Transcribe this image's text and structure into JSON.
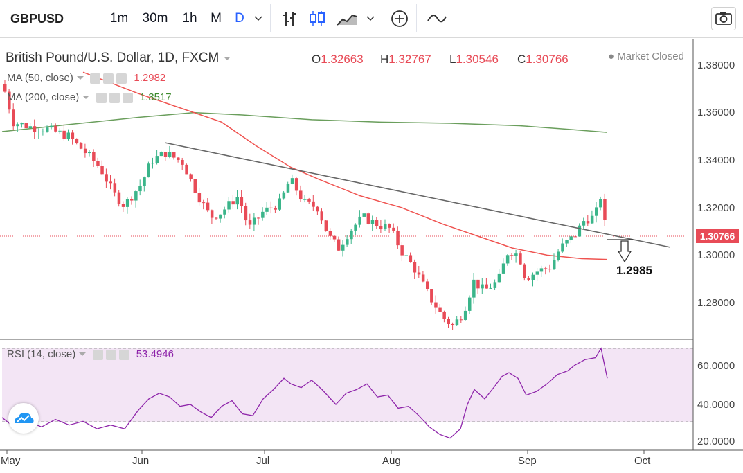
{
  "toolbar": {
    "symbol": "GBPUSD",
    "timeframes": [
      "1m",
      "30m",
      "1h",
      "M",
      "D"
    ],
    "active_timeframe": "D",
    "icons": [
      "chevron-down-icon",
      "bar-chart-icon",
      "candlestick-chart-icon",
      "area-chart-icon",
      "chevron-down-icon",
      "add-indicator-icon",
      "line-tool-icon",
      "camera-icon"
    ]
  },
  "legend": {
    "title": "British Pound/U.S. Dollar, 1D, FXCM",
    "o_label": "O",
    "o_value": "1.32663",
    "h_label": "H",
    "h_value": "1.32767",
    "l_label": "L",
    "l_value": "1.30546",
    "c_label": "C",
    "c_value": "1.30766",
    "market_status": "Market Closed",
    "ma50_label": "MA (50, close)",
    "ma50_value": "1.2982",
    "ma200_label": "MA (200, close)",
    "ma200_value": "1.3517",
    "rsi_label": "RSI (14, close)",
    "rsi_value": "53.4946"
  },
  "colors": {
    "up": "#3bb58a",
    "down": "#e84b57",
    "ma50": "#ef5350",
    "ma200": "#6a9e5c",
    "rsi": "#8e24aa",
    "rsi_band": "#f3e5f5",
    "trendline": "#666666"
  },
  "price_axis": [
    "1.38000",
    "1.36000",
    "1.34000",
    "1.32000",
    "1.30000",
    "1.28000"
  ],
  "last_price_label": "1.30766",
  "rsi_axis": [
    "60.0000",
    "40.0000",
    "20.0000"
  ],
  "months": [
    "May",
    "Jun",
    "Jul",
    "Aug",
    "Sep",
    "Oct"
  ],
  "annotation": "1.2985"
}
